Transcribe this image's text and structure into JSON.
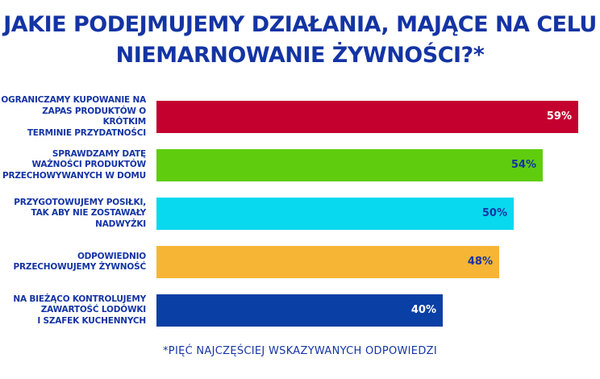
{
  "title_line1": "JAKIE PODEJMUJEMY DZIAŁANIA, MAJĄCE NA CELU",
  "title_line2": "NIEMARNOWANIE ŻYWNOŚCI?*",
  "footnote": "*PIĘĆ NAJCZĘŚCIEJ WSKAZYWANYCH ODPOWIEDZI",
  "chart_data": {
    "type": "bar",
    "orientation": "horizontal",
    "categories": [
      [
        "OGRANICZAMY KUPOWANIE NA",
        "ZAPAS PRODUKTÓW O KRÓTKIM",
        "TERMINIE PRZYDATNOŚCI"
      ],
      [
        "SPRAWDZAMY DATĘ",
        "WAŻNOŚCI PRODUKTÓW",
        "PRZECHOWYWANYCH W DOMU"
      ],
      [
        "PRZYGOTOWUJEMY POSIŁKI,",
        "TAK ABY NIE ZOSTAWAŁY",
        "NADWYŻKI"
      ],
      [
        "ODPOWIEDNIO",
        "PRZECHOWUJEMY ŻYWNOŚĆ"
      ],
      [
        "NA BIEŻĄCO KONTROLUJEMY",
        "ZAWARTOŚĆ LODÓWKI",
        "I SZAFEK KUCHENNYCH"
      ]
    ],
    "values": [
      59,
      54,
      50,
      48,
      40
    ],
    "value_labels": [
      "59%",
      "54%",
      "50%",
      "48%",
      "40%"
    ],
    "unit": "%",
    "colors": [
      "#c4002f",
      "#5fcd0d",
      "#08d9ef",
      "#f7b535",
      "#0a3fa5"
    ],
    "label_colors": [
      "#ffffff",
      "#1434a4",
      "#1434a4",
      "#1434a4",
      "#ffffff"
    ],
    "xlim": [
      0,
      59
    ],
    "grid": false,
    "legend": "none"
  }
}
